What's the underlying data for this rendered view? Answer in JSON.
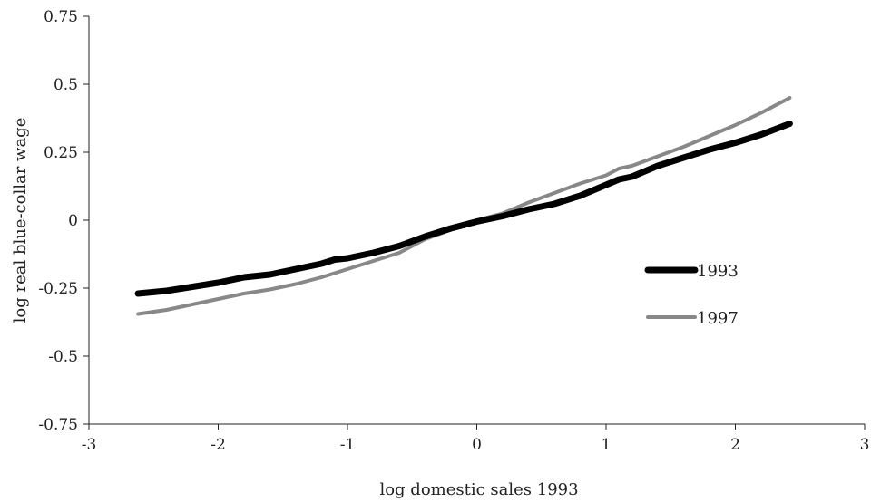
{
  "chart_data": {
    "type": "line",
    "title": "",
    "xlabel": "log domestic sales 1993",
    "ylabel": "log real blue-collar wage",
    "xlim": [
      -3,
      3
    ],
    "ylim": [
      -0.75,
      0.75
    ],
    "xticks": [
      -3,
      -2,
      -1,
      0,
      1,
      2,
      3
    ],
    "xtick_labels": [
      "-3",
      "-2",
      "-1",
      "0",
      "1",
      "2",
      "3"
    ],
    "yticks": [
      -0.75,
      -0.5,
      -0.25,
      0,
      0.25,
      0.5,
      0.75
    ],
    "ytick_labels": [
      "-0.75",
      "-0.5",
      "-0.25",
      "0",
      "0.25",
      "0.5",
      "0.75"
    ],
    "grid": false,
    "legend_position": "right",
    "series": [
      {
        "name": "1993",
        "color": "#000000",
        "x": [
          -2.62,
          -2.4,
          -2.2,
          -2.0,
          -1.8,
          -1.6,
          -1.4,
          -1.2,
          -1.1,
          -1.0,
          -0.8,
          -0.6,
          -0.4,
          -0.2,
          0.0,
          0.2,
          0.4,
          0.6,
          0.8,
          1.0,
          1.1,
          1.2,
          1.4,
          1.6,
          1.8,
          2.0,
          2.2,
          2.42
        ],
        "y": [
          -0.27,
          -0.26,
          -0.245,
          -0.23,
          -0.21,
          -0.2,
          -0.18,
          -0.16,
          -0.145,
          -0.14,
          -0.12,
          -0.095,
          -0.06,
          -0.03,
          -0.005,
          0.015,
          0.04,
          0.06,
          0.09,
          0.13,
          0.15,
          0.16,
          0.2,
          0.23,
          0.26,
          0.285,
          0.315,
          0.355
        ]
      },
      {
        "name": "1997",
        "color": "#888888",
        "x": [
          -2.62,
          -2.4,
          -2.2,
          -2.0,
          -1.8,
          -1.6,
          -1.4,
          -1.2,
          -1.0,
          -0.8,
          -0.6,
          -0.4,
          -0.2,
          0.0,
          0.2,
          0.4,
          0.6,
          0.8,
          1.0,
          1.1,
          1.2,
          1.4,
          1.6,
          1.8,
          2.0,
          2.2,
          2.42
        ],
        "y": [
          -0.345,
          -0.33,
          -0.31,
          -0.29,
          -0.27,
          -0.255,
          -0.235,
          -0.21,
          -0.18,
          -0.15,
          -0.12,
          -0.07,
          -0.035,
          0.0,
          0.025,
          0.065,
          0.1,
          0.135,
          0.165,
          0.19,
          0.2,
          0.235,
          0.27,
          0.31,
          0.35,
          0.395,
          0.45
        ]
      }
    ]
  }
}
